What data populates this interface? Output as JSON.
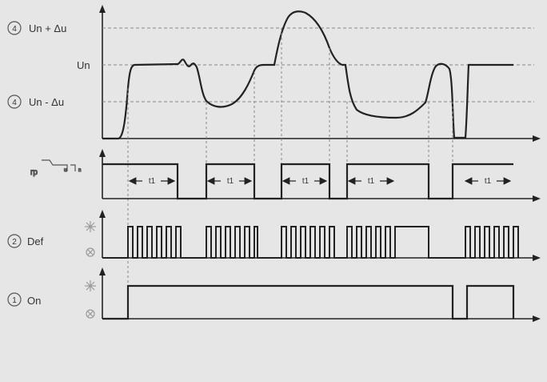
{
  "labels": {
    "marker_4": "4",
    "marker_2": "2",
    "marker_1": "1",
    "un_plus": "Un + Δu",
    "un": "Un",
    "un_minus": "Un - Δu",
    "def": "Def",
    "on": "On",
    "t1": "t1"
  },
  "colors": {
    "background": "#e6e6e6",
    "trace": "#222222",
    "dashed": "#888888",
    "axis": "#222222"
  },
  "icons": {
    "relay_symbol": "relay-contact-icon",
    "led_on": "led-on-icon",
    "led_off": "led-off-icon"
  }
}
